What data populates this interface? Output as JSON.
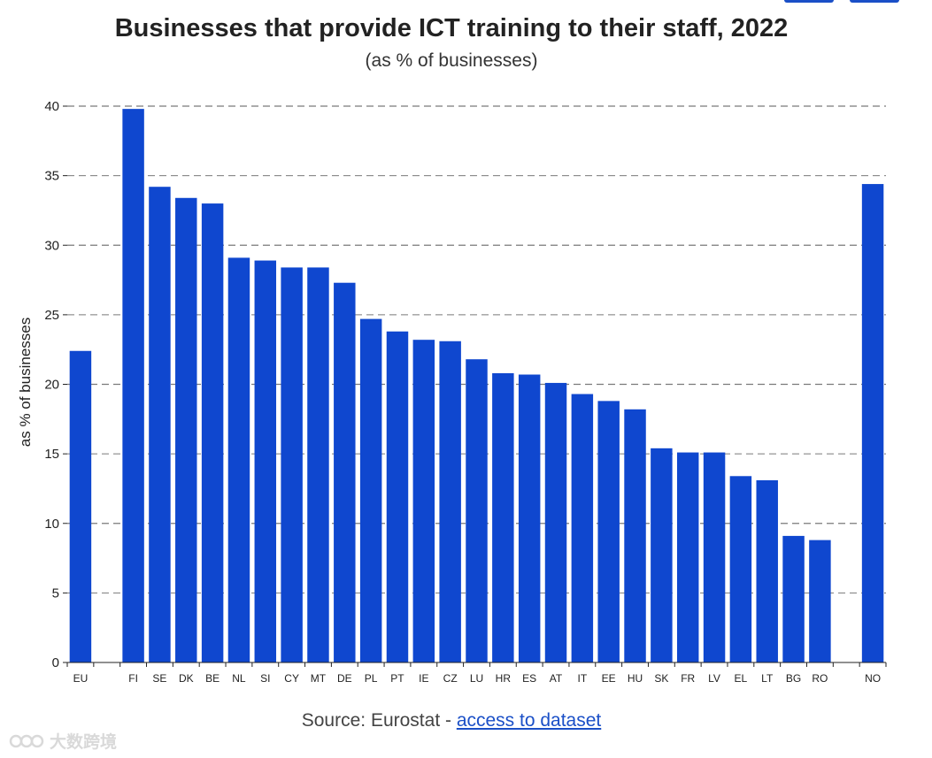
{
  "title": "Businesses that provide ICT training to their staff, 2022",
  "subtitle": "(as % of businesses)",
  "source": {
    "prefix": "Source: Eurostat - ",
    "link_label": "access to dataset"
  },
  "watermark": {
    "text": "大数跨境"
  },
  "colors": {
    "bar": "#0f47cf",
    "grid": "#7a7a7a",
    "axis": "#222222",
    "link": "#1a4fc7"
  },
  "chart_data": {
    "type": "bar",
    "title": "Businesses that provide ICT training to their staff, 2022",
    "subtitle": "(as % of businesses)",
    "xlabel": "",
    "ylabel": "as % of businesses",
    "ylim": [
      0,
      40
    ],
    "yticks": [
      0,
      5,
      10,
      15,
      20,
      25,
      30,
      35,
      40
    ],
    "grid": true,
    "categories": [
      "EU",
      "",
      "FI",
      "SE",
      "DK",
      "BE",
      "NL",
      "SI",
      "CY",
      "MT",
      "DE",
      "PL",
      "PT",
      "IE",
      "CZ",
      "LU",
      "HR",
      "ES",
      "AT",
      "IT",
      "EE",
      "HU",
      "SK",
      "FR",
      "LV",
      "EL",
      "LT",
      "BG",
      "RO",
      "",
      "NO"
    ],
    "values": [
      22.4,
      null,
      39.8,
      34.2,
      33.4,
      33.0,
      29.1,
      28.9,
      28.4,
      28.4,
      27.3,
      24.7,
      23.8,
      23.2,
      23.1,
      21.8,
      20.8,
      20.7,
      20.1,
      19.3,
      18.8,
      18.2,
      15.4,
      15.1,
      15.1,
      13.4,
      13.1,
      9.1,
      8.8,
      null,
      34.4
    ]
  }
}
